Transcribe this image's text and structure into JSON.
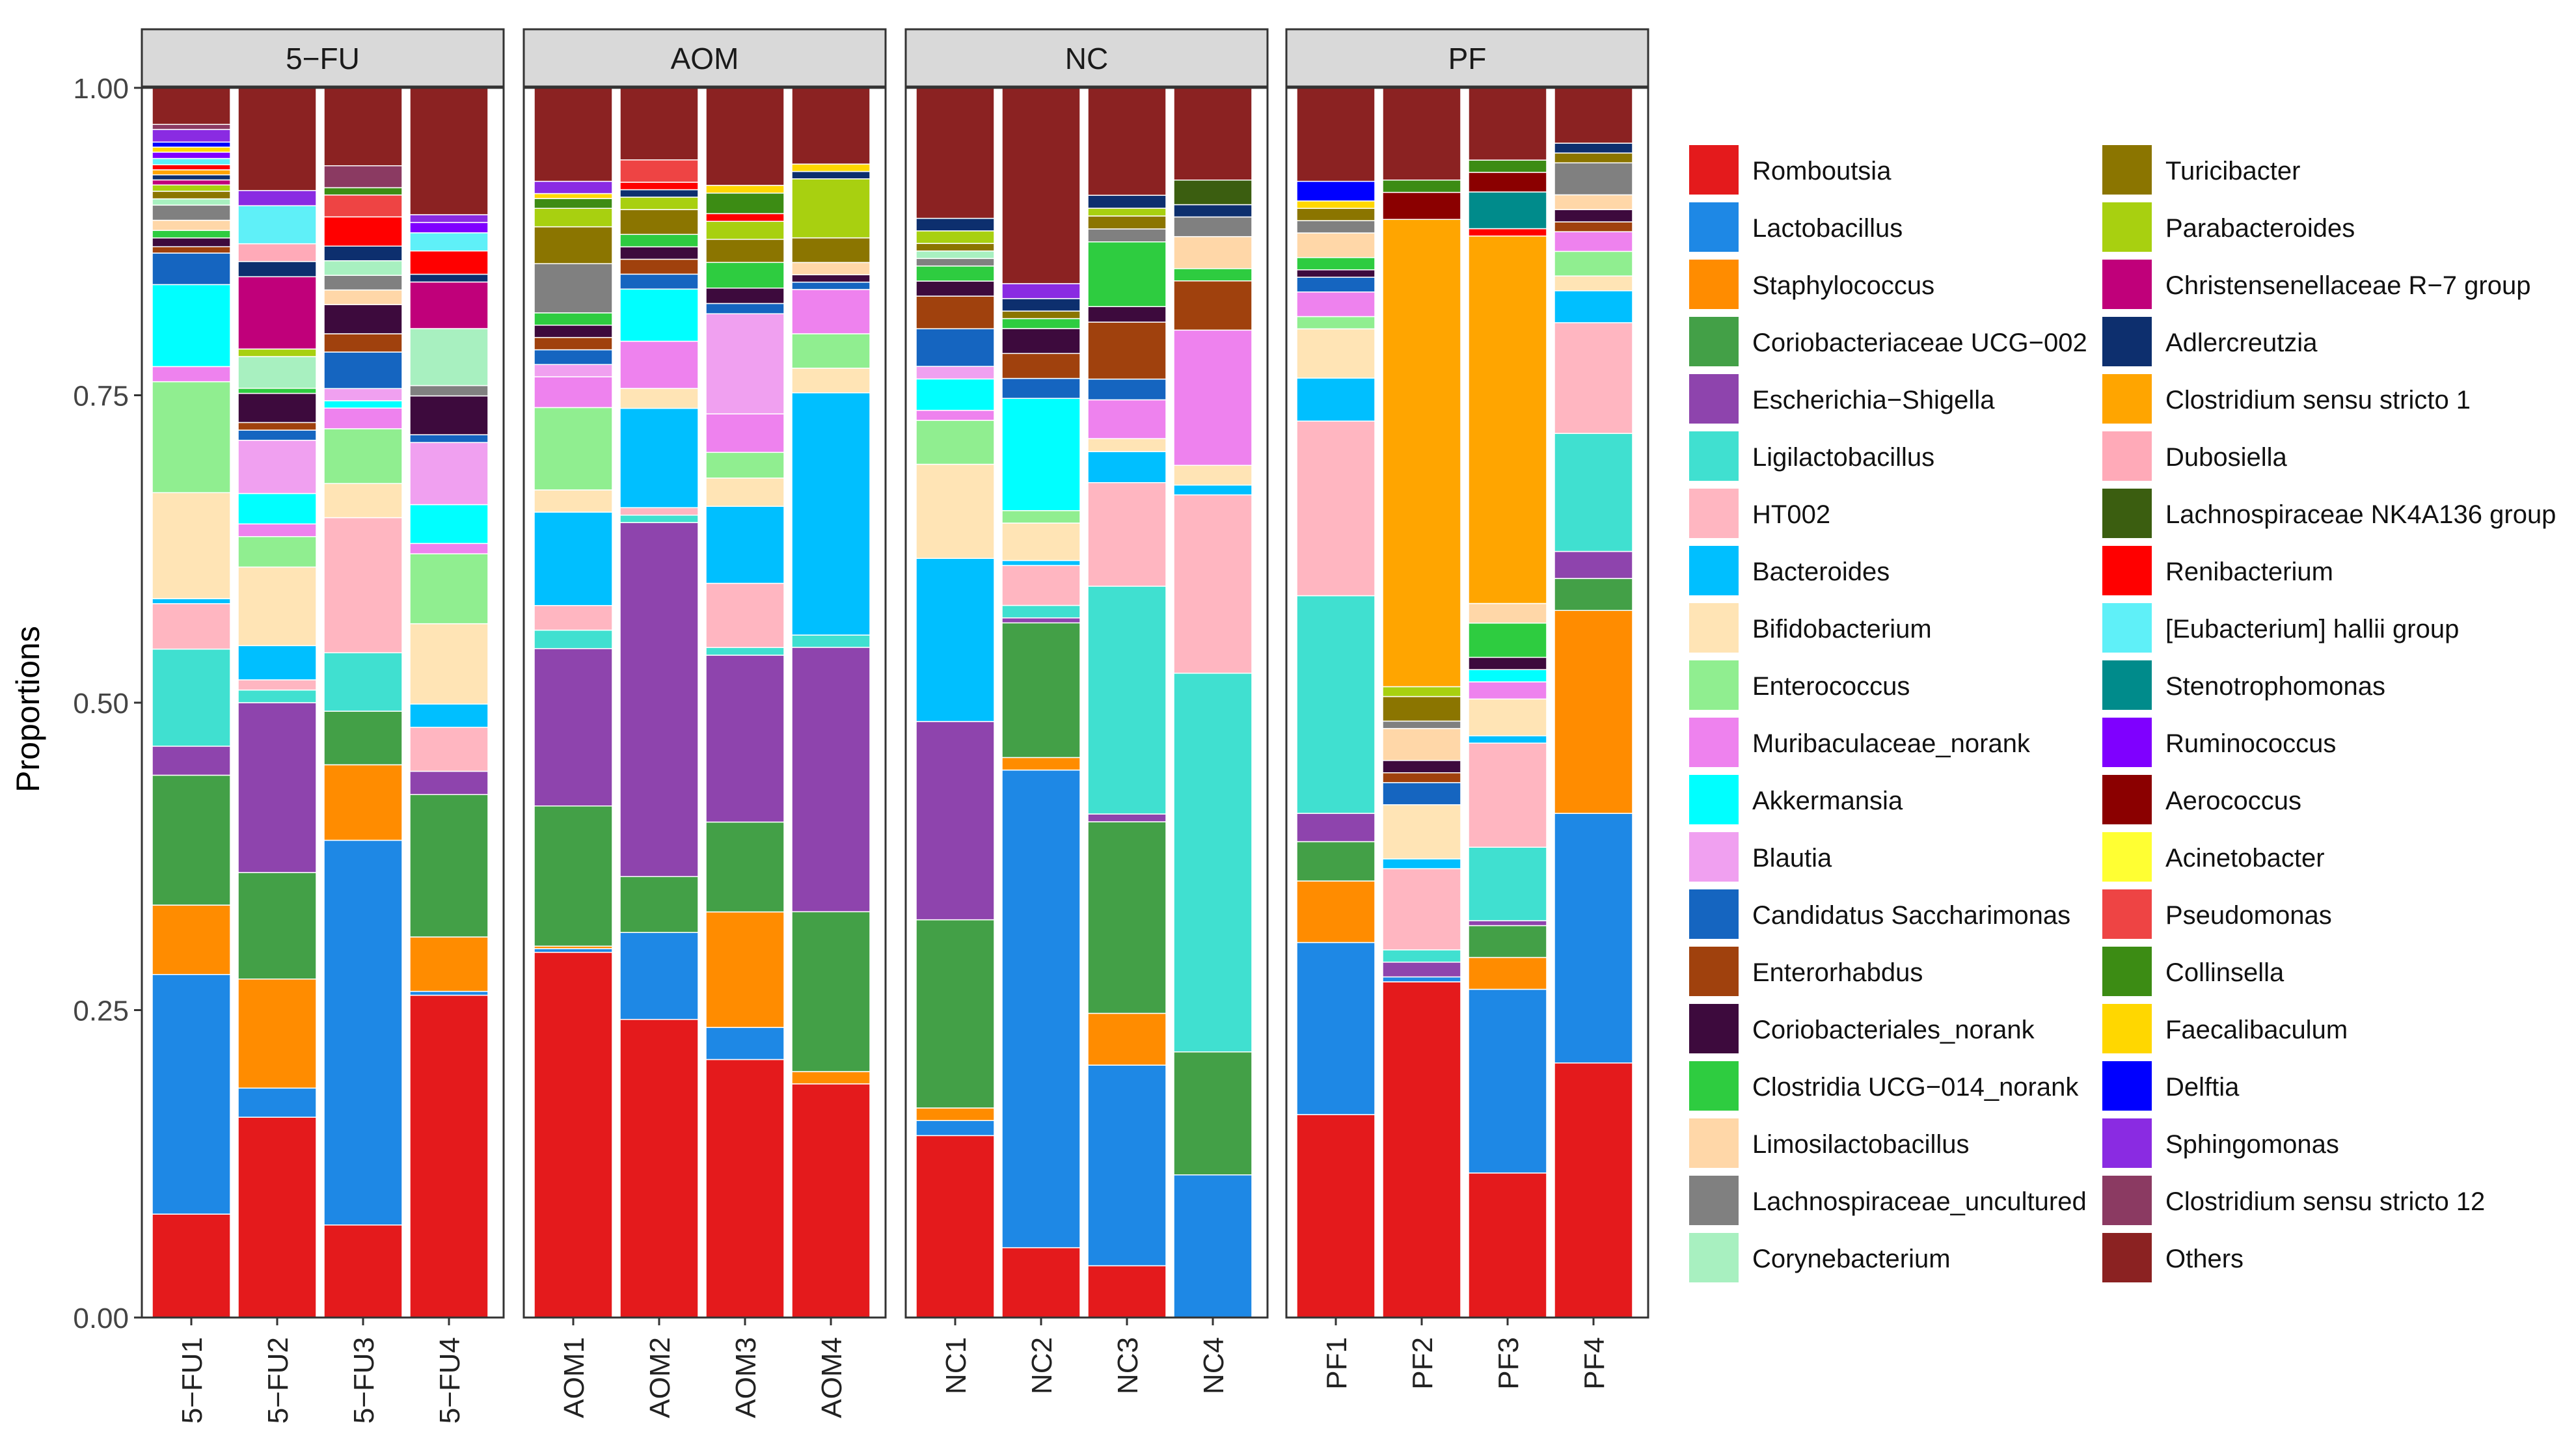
{
  "chart_data": {
    "type": "bar",
    "stacked": true,
    "ylabel": "Proportions",
    "ylim": [
      0,
      1
    ],
    "yticks": [
      0,
      0.25,
      0.5,
      0.75,
      1
    ],
    "ytick_labels": [
      "0.00",
      "0.25",
      "0.50",
      "0.75",
      "1.00"
    ],
    "panels": [
      {
        "label": "5−FU",
        "samples": [
          "5−FU1",
          "5−FU2",
          "5−FU3",
          "5−FU4"
        ]
      },
      {
        "label": "AOM",
        "samples": [
          "AOM1",
          "AOM2",
          "AOM3",
          "AOM4"
        ]
      },
      {
        "label": "NC",
        "samples": [
          "NC1",
          "NC2",
          "NC3",
          "NC4"
        ]
      },
      {
        "label": "PF",
        "samples": [
          "PF1",
          "PF2",
          "PF3",
          "PF4"
        ]
      }
    ],
    "legend": [
      {
        "name": "Romboutsia",
        "color": "#e41a1c"
      },
      {
        "name": "Lactobacillus",
        "color": "#1e88e5"
      },
      {
        "name": "Staphylococcus",
        "color": "#ff8c00"
      },
      {
        "name": "Coriobacteriaceae UCG−002",
        "color": "#43a047"
      },
      {
        "name": "Escherichia−Shigella",
        "color": "#8e44ad"
      },
      {
        "name": "Ligilactobacillus",
        "color": "#40e0d0"
      },
      {
        "name": "HT002",
        "color": "#ffb6c1"
      },
      {
        "name": "Bacteroides",
        "color": "#00bfff"
      },
      {
        "name": "Bifidobacterium",
        "color": "#ffe4b5"
      },
      {
        "name": "Enterococcus",
        "color": "#90ee90"
      },
      {
        "name": "Muribaculaceae_norank",
        "color": "#ee82ee"
      },
      {
        "name": "Akkermansia",
        "color": "#00ffff"
      },
      {
        "name": "Blautia",
        "color": "#f0a0f0"
      },
      {
        "name": "Candidatus Saccharimonas",
        "color": "#1565c0"
      },
      {
        "name": "Enterorhabdus",
        "color": "#a0410d"
      },
      {
        "name": "Coriobacteriales_norank",
        "color": "#3d0a3d"
      },
      {
        "name": "Clostridia UCG−014_norank",
        "color": "#2ecc40"
      },
      {
        "name": "Limosilactobacillus",
        "color": "#ffd7a8"
      },
      {
        "name": "Lachnospiraceae_uncultured",
        "color": "#808080"
      },
      {
        "name": "Corynebacterium",
        "color": "#a8f0c0"
      },
      {
        "name": "Turicibacter",
        "color": "#8b7500"
      },
      {
        "name": "Parabacteroides",
        "color": "#a8d010"
      },
      {
        "name": "Christensenellaceae R−7 group",
        "color": "#c0007a"
      },
      {
        "name": "Adlercreutzia",
        "color": "#0d2f6e"
      },
      {
        "name": "Clostridium sensu stricto 1",
        "color": "#ffa500"
      },
      {
        "name": "Dubosiella",
        "color": "#ffaab8"
      },
      {
        "name": "Lachnospiraceae NK4A136 group",
        "color": "#3b5e10"
      },
      {
        "name": "Renibacterium",
        "color": "#ff0000"
      },
      {
        "name": "[Eubacterium] hallii group",
        "color": "#5ff0f8"
      },
      {
        "name": "Stenotrophomonas",
        "color": "#008b8b"
      },
      {
        "name": "Ruminococcus",
        "color": "#7f00ff"
      },
      {
        "name": "Aerococcus",
        "color": "#8b0000"
      },
      {
        "name": "Acinetobacter",
        "color": "#ffff33"
      },
      {
        "name": "Pseudomonas",
        "color": "#ee4444"
      },
      {
        "name": "Collinsella",
        "color": "#3c8c14"
      },
      {
        "name": "Faecalibaculum",
        "color": "#ffd700"
      },
      {
        "name": "Delftia",
        "color": "#0000ff"
      },
      {
        "name": "Sphingomonas",
        "color": "#8a2be2"
      },
      {
        "name": "Clostridium sensu stricto 12",
        "color": "#8b3a62"
      },
      {
        "name": "Others",
        "color": "#8b2222"
      }
    ],
    "series_values": {
      "5−FU1": {
        "Romboutsia": 0.082,
        "Lactobacillus": 0.19,
        "Staphylococcus": 0.055,
        "Coriobacteriaceae UCG−002": 0.103,
        "Escherichia−Shigella": 0.023,
        "Ligilactobacillus": 0.077,
        "HT002": 0.036,
        "Bacteroides": 0.004,
        "Bifidobacterium": 0.084,
        "Enterococcus": 0.088,
        "Muribaculaceae_norank": 0.012,
        "Akkermansia": 0.065,
        "Candidatus Saccharimonas": 0.025,
        "Enterorhabdus": 0.005,
        "Coriobacteriales_norank": 0.007,
        "Clostridia UCG−014_norank": 0.006,
        "Limosilactobacillus": 0.008,
        "Lachnospiraceae_uncultured": 0.012,
        "Corynebacterium": 0.005,
        "Turicibacter": 0.006,
        "Parabacteroides": 0.005,
        "Christensenellaceae R−7 group": 0.004,
        "Adlercreutzia": 0.004,
        "Clostridium sensu stricto 1": 0.004,
        "Renibacterium": 0.004,
        "[Eubacterium] hallii group": 0.005,
        "Ruminococcus": 0.005,
        "Sphingomonas": 0.01,
        "Clostridium sensu stricto 12": 0.004,
        "Delftia": 0.004,
        "Faecalibaculum": 0.004,
        "Others": 0.029
      },
      "5−FU2": {
        "Romboutsia": 0.158,
        "Lactobacillus": 0.023,
        "Staphylococcus": 0.086,
        "Coriobacteriaceae UCG−002": 0.084,
        "Escherichia−Shigella": 0.134,
        "Ligilactobacillus": 0.01,
        "HT002": 0.008,
        "Bacteroides": 0.027,
        "Bifidobacterium": 0.062,
        "Enterococcus": 0.024,
        "Muribaculaceae_norank": 0.01,
        "Akkermansia": 0.024,
        "Blautia": 0.042,
        "Candidatus Saccharimonas": 0.008,
        "Enterorhabdus": 0.006,
        "Coriobacteriales_norank": 0.023,
        "Clostridia UCG−014_norank": 0.004,
        "Corynebacterium": 0.025,
        "Parabacteroides": 0.006,
        "Christensenellaceae R−7 group": 0.057,
        "Adlercreutzia": 0.012,
        "Dubosiella": 0.014,
        "[Eubacterium] hallii group": 0.03,
        "Sphingomonas": 0.012,
        "Others": 0.081
      },
      "5−FU3": {
        "Romboutsia": 0.076,
        "Lactobacillus": 0.316,
        "Staphylococcus": 0.062,
        "Coriobacteriaceae UCG−002": 0.044,
        "Ligilactobacillus": 0.048,
        "HT002": 0.111,
        "Bifidobacterium": 0.028,
        "Enterococcus": 0.045,
        "Muribaculaceae_norank": 0.017,
        "Akkermansia": 0.006,
        "Blautia": 0.01,
        "Candidatus Saccharimonas": 0.03,
        "Enterorhabdus": 0.015,
        "Coriobacteriales_norank": 0.024,
        "Lachnospiraceae_uncultured": 0.012,
        "Corynebacterium": 0.012,
        "Limosilactobacillus": 0.012,
        "Adlercreutzia": 0.012,
        "Renibacterium": 0.024,
        "Pseudomonas": 0.018,
        "Collinsella": 0.006,
        "Clostridium sensu stricto 12": 0.018,
        "Others": 0.064
      },
      "5−FU4": {
        "Romboutsia": 0.249,
        "Lactobacillus": 0.003,
        "Staphylococcus": 0.042,
        "Coriobacteriaceae UCG−002": 0.11,
        "Escherichia−Shigella": 0.018,
        "HT002": 0.034,
        "Bacteroides": 0.018,
        "Bifidobacterium": 0.062,
        "Enterococcus": 0.054,
        "Muribaculaceae_norank": 0.008,
        "Akkermansia": 0.03,
        "Blautia": 0.048,
        "Candidatus Saccharimonas": 0.006,
        "Coriobacteriales_norank": 0.03,
        "Lachnospiraceae_uncultured": 0.008,
        "Corynebacterium": 0.044,
        "Christensenellaceae R−7 group": 0.036,
        "Renibacterium": 0.018,
        "[Eubacterium] hallii group": 0.014,
        "Adlercreutzia": 0.006,
        "Ruminococcus": 0.008,
        "Sphingomonas": 0.006,
        "Others": 0.098
      },
      "AOM1": {
        "Romboutsia": 0.297,
        "Lactobacillus": 0.003,
        "Staphylococcus": 0.002,
        "Coriobacteriaceae UCG−002": 0.114,
        "Escherichia−Shigella": 0.128,
        "Ligilactobacillus": 0.015,
        "HT002": 0.02,
        "Bacteroides": 0.076,
        "Bifidobacterium": 0.018,
        "Enterococcus": 0.067,
        "Muribaculaceae_norank": 0.025,
        "Blautia": 0.01,
        "Candidatus Saccharimonas": 0.012,
        "Enterorhabdus": 0.01,
        "Coriobacteriales_norank": 0.01,
        "Lachnospiraceae_uncultured": 0.04,
        "Turicibacter": 0.03,
        "Parabacteroides": 0.015,
        "Clostridia UCG−014_norank": 0.01,
        "Sphingomonas": 0.01,
        "Faecalibaculum": 0.004,
        "Collinsella": 0.008,
        "Others": 0.076
      },
      "AOM2": {
        "Romboutsia": 0.24,
        "Lactobacillus": 0.07,
        "Coriobacteriaceae UCG−002": 0.045,
        "Escherichia−Shigella": 0.285,
        "Ligilactobacillus": 0.006,
        "HT002": 0.006,
        "Bacteroides": 0.08,
        "Bifidobacterium": 0.016,
        "Muribaculaceae_norank": 0.038,
        "Akkermansia": 0.042,
        "Candidatus Saccharimonas": 0.012,
        "Enterorhabdus": 0.012,
        "Coriobacteriales_norank": 0.01,
        "Clostridia UCG−014_norank": 0.01,
        "Turicibacter": 0.02,
        "Parabacteroides": 0.01,
        "Adlercreutzia": 0.006,
        "Pseudomonas": 0.018,
        "Renibacterium": 0.006,
        "Others": 0.058
      },
      "AOM3": {
        "Romboutsia": 0.201,
        "Lactobacillus": 0.025,
        "Staphylococcus": 0.09,
        "Coriobacteriaceae UCG−002": 0.07,
        "Escherichia−Shigella": 0.13,
        "Ligilactobacillus": 0.006,
        "HT002": 0.05,
        "Bacteroides": 0.06,
        "Bifidobacterium": 0.022,
        "Enterococcus": 0.02,
        "Muribaculaceae_norank": 0.03,
        "Blautia": 0.078,
        "Candidatus Saccharimonas": 0.008,
        "Coriobacteriales_norank": 0.012,
        "Clostridia UCG−014_norank": 0.02,
        "Turicibacter": 0.018,
        "Parabacteroides": 0.014,
        "Renibacterium": 0.006,
        "Collinsella": 0.016,
        "Faecalibaculum": 0.006,
        "Others": 0.076
      },
      "AOM4": {
        "Romboutsia": 0.19,
        "Staphylococcus": 0.01,
        "Coriobacteriaceae UCG−002": 0.13,
        "Escherichia−Shigella": 0.215,
        "Bacteroides": 0.197,
        "Bifidobacterium": 0.02,
        "Enterococcus": 0.028,
        "Muribaculaceae_norank": 0.036,
        "Ligilactobacillus": 0.01,
        "Candidatus Saccharimonas": 0.006,
        "Coriobacteriales_norank": 0.006,
        "Turicibacter": 0.02,
        "Parabacteroides": 0.048,
        "Adlercreutzia": 0.006,
        "Limosilactobacillus": 0.01,
        "Faecalibaculum": 0.006,
        "Others": 0.062
      },
      "NC1": {
        "Romboutsia": 0.145,
        "Lactobacillus": 0.012,
        "Staphylococcus": 0.01,
        "Coriobacteriaceae UCG−002": 0.15,
        "Escherichia−Shigella": 0.158,
        "Bacteroides": 0.13,
        "Bifidobacterium": 0.075,
        "Enterococcus": 0.035,
        "Muribaculaceae_norank": 0.008,
        "Akkermansia": 0.025,
        "Blautia": 0.01,
        "Candidatus Saccharimonas": 0.03,
        "Enterorhabdus": 0.026,
        "Coriobacteriales_norank": 0.012,
        "Clostridia UCG−014_norank": 0.012,
        "Lachnospiraceae_uncultured": 0.006,
        "Turicibacter": 0.006,
        "Parabacteroides": 0.01,
        "Adlercreutzia": 0.01,
        "Corynebacterium": 0.006,
        "Others": 0.104
      },
      "NC2": {
        "Romboutsia": 0.056,
        "Lactobacillus": 0.383,
        "Staphylococcus": 0.01,
        "Coriobacteriaceae UCG−002": 0.108,
        "Escherichia−Shigella": 0.004,
        "Ligilactobacillus": 0.01,
        "HT002": 0.032,
        "Bacteroides": 0.004,
        "Bifidobacterium": 0.03,
        "Enterococcus": 0.01,
        "Akkermansia": 0.09,
        "Candidatus Saccharimonas": 0.016,
        "Enterorhabdus": 0.02,
        "Coriobacteriales_norank": 0.02,
        "Clostridia UCG−014_norank": 0.008,
        "Adlercreutzia": 0.01,
        "Sphingomonas": 0.012,
        "Turicibacter": 0.006,
        "Others": 0.157
      },
      "NC3": {
        "Romboutsia": 0.04,
        "Lactobacillus": 0.155,
        "Staphylococcus": 0.04,
        "Coriobacteriaceae UCG−002": 0.148,
        "Escherichia−Shigella": 0.006,
        "Ligilactobacillus": 0.176,
        "HT002": 0.08,
        "Bacteroides": 0.024,
        "Muribaculaceae_norank": 0.03,
        "Bifidobacterium": 0.01,
        "Candidatus Saccharimonas": 0.016,
        "Enterorhabdus": 0.044,
        "Coriobacteriales_norank": 0.012,
        "Clostridia UCG−014_norank": 0.05,
        "Lachnospiraceae_uncultured": 0.01,
        "Turicibacter": 0.01,
        "Adlercreutzia": 0.01,
        "Parabacteroides": 0.006,
        "Others": 0.083
      },
      "NC4": {
        "Lactobacillus": 0.116,
        "Coriobacteriaceae UCG−002": 0.1,
        "Ligilactobacillus": 0.308,
        "HT002": 0.145,
        "Bacteroides": 0.008,
        "Bifidobacterium": 0.016,
        "Muribaculaceae_norank": 0.11,
        "Enterorhabdus": 0.04,
        "Clostridia UCG−014_norank": 0.01,
        "Limosilactobacillus": 0.026,
        "Lachnospiraceae_uncultured": 0.016,
        "Adlercreutzia": 0.01,
        "Lachnospiraceae NK4A136 group": 0.02,
        "Others": 0.075
      },
      "PF1": {
        "Romboutsia": 0.165,
        "Lactobacillus": 0.14,
        "Staphylococcus": 0.05,
        "Coriobacteriaceae UCG−002": 0.032,
        "Escherichia−Shigella": 0.023,
        "Ligilactobacillus": 0.177,
        "HT002": 0.142,
        "Bacteroides": 0.035,
        "Bifidobacterium": 0.04,
        "Muribaculaceae_norank": 0.02,
        "Candidatus Saccharimonas": 0.012,
        "Enterococcus": 0.01,
        "Coriobacteriales_norank": 0.006,
        "Clostridia UCG−014_norank": 0.01,
        "Lachnospiraceae_uncultured": 0.01,
        "Turicibacter": 0.01,
        "Limosilactobacillus": 0.02,
        "Faecalibaculum": 0.006,
        "Delftia": 0.016,
        "Others": 0.076
      },
      "PF2": {
        "Romboutsia": 0.273,
        "Lactobacillus": 0.004,
        "Clostridium sensu stricto 1": 0.38,
        "Escherichia−Shigella": 0.012,
        "Ligilactobacillus": 0.01,
        "HT002": 0.066,
        "Bacteroides": 0.008,
        "Bifidobacterium": 0.044,
        "Candidatus Saccharimonas": 0.018,
        "Enterorhabdus": 0.008,
        "Coriobacteriales_norank": 0.01,
        "Turicibacter": 0.02,
        "Limosilactobacillus": 0.026,
        "Parabacteroides": 0.008,
        "Lachnospiraceae_uncultured": 0.006,
        "Aerococcus": 0.022,
        "Collinsella": 0.01,
        "Others": 0.075
      },
      "PF3": {
        "Romboutsia": 0.118,
        "Lactobacillus": 0.15,
        "Clostridium sensu stricto 1": 0.3,
        "Coriobacteriaceae UCG−002": 0.026,
        "Escherichia−Shigella": 0.004,
        "Ligilactobacillus": 0.06,
        "HT002": 0.085,
        "Bacteroides": 0.006,
        "Bifidobacterium": 0.03,
        "Muribaculaceae_norank": 0.014,
        "Akkermansia": 0.01,
        "Coriobacteriales_norank": 0.01,
        "Clostridia UCG−014_norank": 0.028,
        "Limosilactobacillus": 0.016,
        "Staphylococcus": 0.026,
        "Stenotrophomonas": 0.03,
        "Aerococcus": 0.016,
        "Collinsella": 0.01,
        "Renibacterium": 0.006,
        "Others": 0.059
      },
      "PF4": {
        "Romboutsia": 0.207,
        "Lactobacillus": 0.203,
        "Staphylococcus": 0.165,
        "Coriobacteriaceae UCG−002": 0.026,
        "Escherichia−Shigella": 0.022,
        "Ligilactobacillus": 0.096,
        "HT002": 0.09,
        "Bacteroides": 0.026,
        "Bifidobacterium": 0.012,
        "Enterococcus": 0.02,
        "Muribaculaceae_norank": 0.016,
        "Enterorhabdus": 0.008,
        "Coriobacteriales_norank": 0.01,
        "Limosilactobacillus": 0.012,
        "Lachnospiraceae_uncultured": 0.026,
        "Turicibacter": 0.008,
        "Adlercreutzia": 0.008,
        "Others": 0.045
      }
    }
  }
}
